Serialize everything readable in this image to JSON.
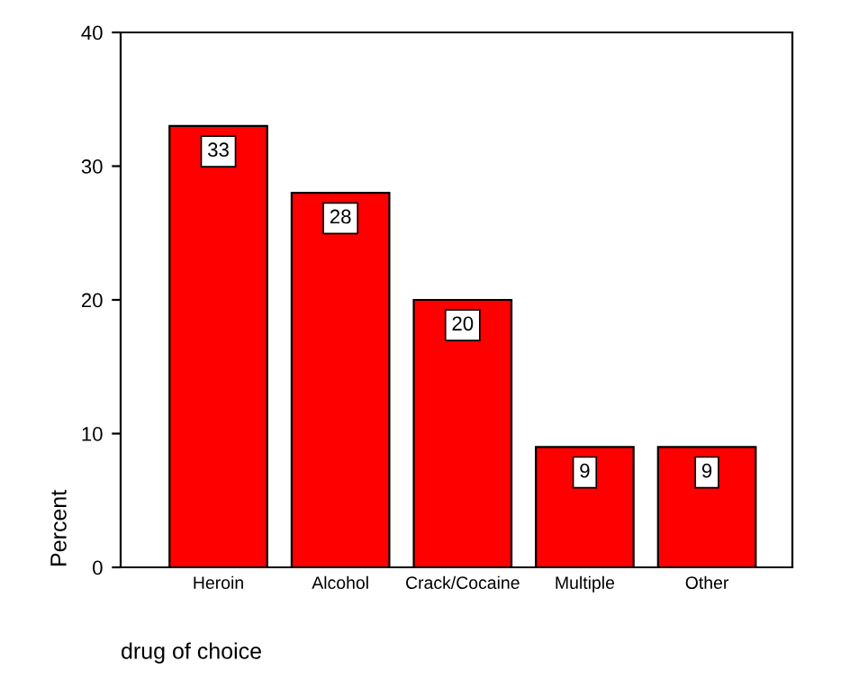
{
  "chart_data": {
    "type": "bar",
    "xlabel": "drug of choice",
    "ylabel": "Percent",
    "categories": [
      "Heroin",
      "Alcohol",
      "Crack/Cocaine",
      "Multiple",
      "Other"
    ],
    "values": [
      33,
      28,
      20,
      9,
      9
    ],
    "color": "#ff0000",
    "ylim": [
      0,
      40
    ],
    "yticks": [
      0,
      10,
      20,
      30,
      40
    ],
    "grid": false,
    "data_labels": true
  }
}
